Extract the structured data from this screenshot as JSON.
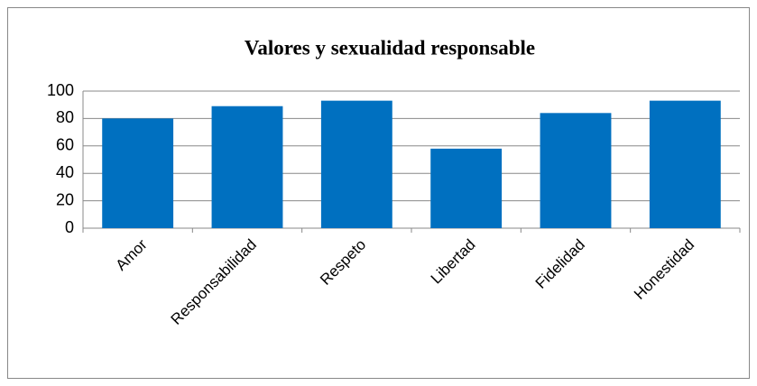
{
  "chart_data": {
    "type": "bar",
    "title": "Valores y sexualidad responsable",
    "categories": [
      "Amor",
      "Responsabilidad",
      "Respeto",
      "Libertad",
      "Fidelidad",
      "Honestidad"
    ],
    "values": [
      80,
      89,
      93,
      58,
      84,
      93
    ],
    "color": "#0070c0",
    "ylim": [
      0,
      100
    ],
    "yticks": [
      0,
      20,
      40,
      60,
      80,
      100
    ],
    "grid": true
  }
}
